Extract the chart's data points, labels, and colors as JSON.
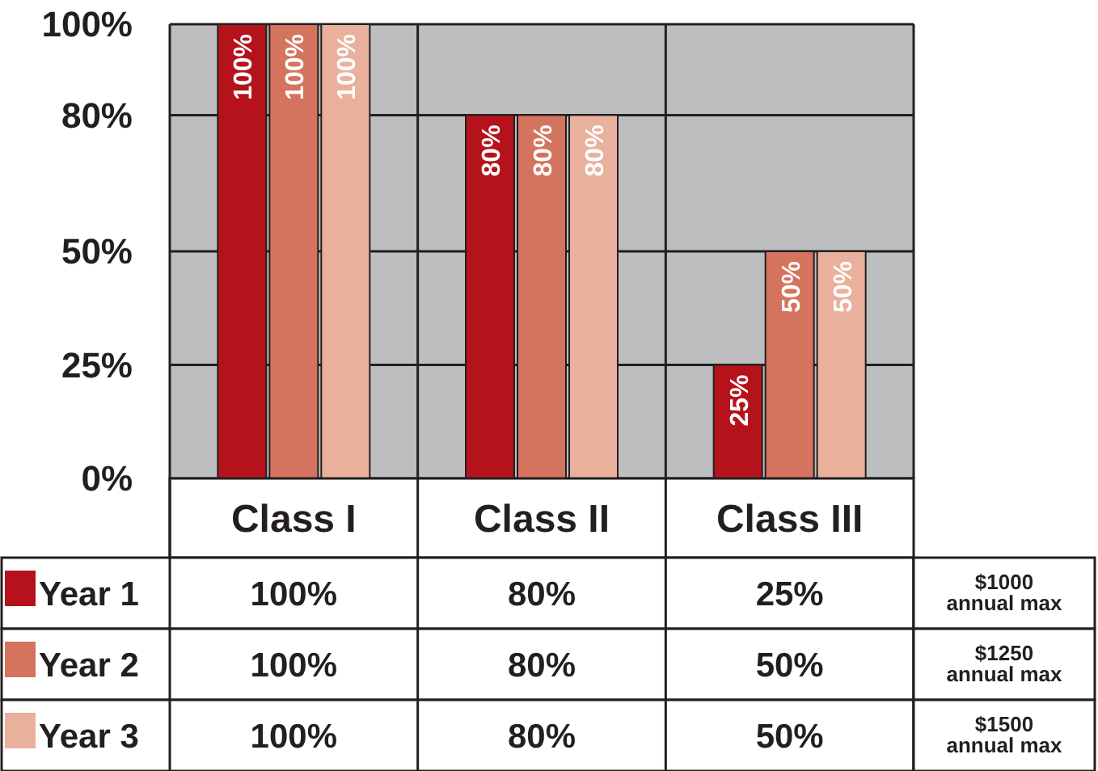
{
  "chart_data": {
    "type": "bar",
    "categories": [
      "Class I",
      "Class II",
      "Class III"
    ],
    "series": [
      {
        "name": "Year 1",
        "color": "#b5121b",
        "values": [
          100,
          80,
          25
        ],
        "value_labels": [
          "100%",
          "80%",
          "25%"
        ]
      },
      {
        "name": "Year 2",
        "color": "#d4735e",
        "values": [
          100,
          80,
          50
        ],
        "value_labels": [
          "100%",
          "80%",
          "50%"
        ]
      },
      {
        "name": "Year 3",
        "color": "#e9b09b",
        "values": [
          100,
          80,
          50
        ],
        "value_labels": [
          "100%",
          "80%",
          "50%"
        ]
      }
    ],
    "ylim": [
      0,
      100
    ],
    "yticks": [
      {
        "value": 0,
        "label": "0%"
      },
      {
        "value": 25,
        "label": "25%"
      },
      {
        "value": 50,
        "label": "50%"
      },
      {
        "value": 80,
        "label": "80%"
      },
      {
        "value": 100,
        "label": "100%"
      }
    ],
    "grid": true,
    "legend": "bottom left",
    "data_labels": true,
    "annotations": [
      "$1000 annual max",
      "$1250 annual max",
      "$1500 annual max"
    ]
  }
}
